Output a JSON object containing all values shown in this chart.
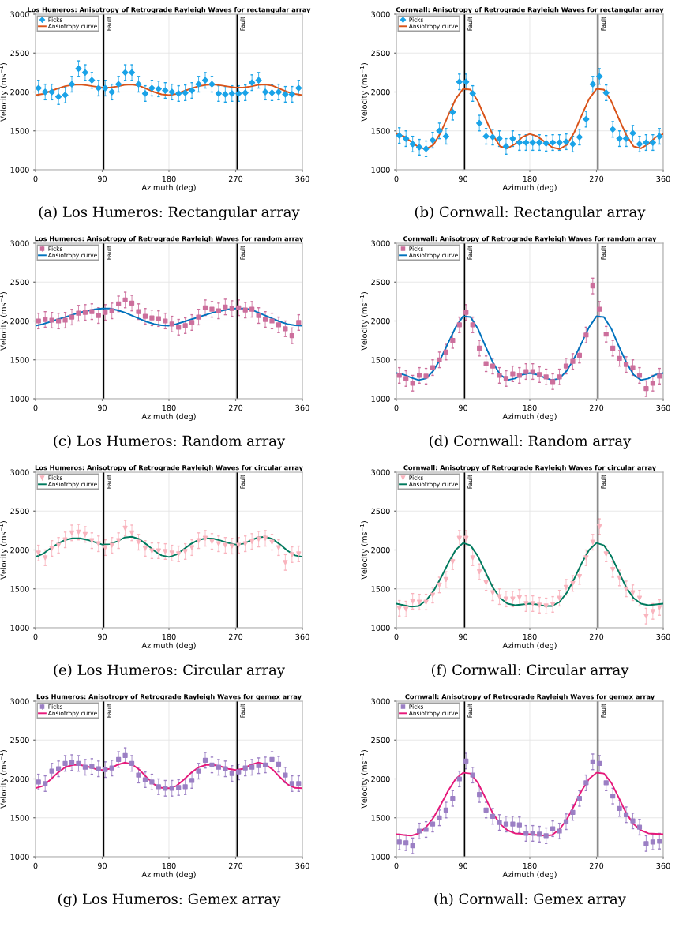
{
  "chart_data": [
    {
      "type": "scatter",
      "title": "Los Humeros: Anisotropy of Retrograde Rayleigh Waves for rectangular array",
      "xlabel": "Azimuth (deg)",
      "ylabel": "Velocity (ms$^{−1}$)",
      "xlim": [
        0,
        360
      ],
      "ylim": [
        1000,
        3000
      ],
      "xticks": [
        0,
        90,
        180,
        270,
        360
      ],
      "yticks": [
        1000,
        1500,
        2000,
        2500,
        3000
      ],
      "grid": true,
      "legend": "top left",
      "x": [
        4,
        13,
        22,
        31,
        40,
        49,
        58,
        67,
        76,
        85,
        94,
        103,
        112,
        121,
        130,
        139,
        148,
        157,
        166,
        175,
        184,
        193,
        202,
        211,
        220,
        229,
        238,
        247,
        256,
        265,
        274,
        283,
        292,
        301,
        310,
        319,
        328,
        337,
        346,
        355
      ],
      "ref_lines": [
        {
          "axis": "x",
          "value": 92,
          "label": "Fault",
          "color": "#000000"
        },
        {
          "axis": "x",
          "value": 272,
          "label": "Fault",
          "color": "#000000"
        }
      ],
      "annotations": [
        "(a) Los Humeros: Rectangular array"
      ],
      "series": [
        {
          "name": "Picks",
          "marker": "diamond",
          "color": "#1aa3e8",
          "values": [
            2050,
            2000,
            2000,
            1940,
            1960,
            2100,
            2300,
            2250,
            2150,
            2050,
            2050,
            2000,
            2100,
            2250,
            2250,
            2100,
            1980,
            2050,
            2040,
            2020,
            2000,
            1980,
            1990,
            2020,
            2100,
            2150,
            2100,
            1980,
            1970,
            1980,
            1980,
            1990,
            2120,
            2150,
            2000,
            1990,
            2000,
            1970,
            1970,
            2050
          ],
          "errors": [
            100,
            100,
            100,
            100,
            100,
            100,
            100,
            100,
            100,
            100,
            100,
            100,
            100,
            100,
            100,
            100,
            100,
            100,
            100,
            100,
            100,
            100,
            100,
            100,
            100,
            100,
            100,
            100,
            100,
            100,
            100,
            100,
            100,
            100,
            100,
            100,
            100,
            100,
            100,
            100
          ]
        },
        {
          "name": "Ansiotropy curve",
          "type": "line",
          "line_style": "solid",
          "color": "#d95319",
          "x": [
            0,
            10,
            20,
            30,
            40,
            50,
            60,
            70,
            80,
            90,
            100,
            110,
            120,
            130,
            140,
            150,
            160,
            170,
            180,
            190,
            200,
            210,
            220,
            230,
            240,
            250,
            260,
            270,
            280,
            290,
            300,
            310,
            320,
            330,
            340,
            350,
            360
          ],
          "values": [
            1960,
            1975,
            2010,
            2045,
            2075,
            2090,
            2095,
            2085,
            2070,
            2055,
            2055,
            2070,
            2090,
            2095,
            2080,
            2040,
            2000,
            1970,
            1960,
            1975,
            2010,
            2045,
            2075,
            2090,
            2095,
            2085,
            2070,
            2055,
            2055,
            2070,
            2090,
            2095,
            2080,
            2040,
            2000,
            1975,
            1960
          ]
        }
      ]
    },
    {
      "type": "scatter",
      "title": "Cornwall: Anisotropy of Retrograde Rayleigh Waves for rectangular array",
      "xlabel": "Azimuth (deg)",
      "ylabel": "Velocity (ms$^{−1}$)",
      "xlim": [
        0,
        360
      ],
      "ylim": [
        1000,
        3000
      ],
      "xticks": [
        0,
        90,
        180,
        270,
        360
      ],
      "yticks": [
        1000,
        1500,
        2000,
        2500,
        3000
      ],
      "grid": true,
      "legend": "top left",
      "x": [
        4,
        13,
        22,
        31,
        40,
        49,
        58,
        67,
        76,
        85,
        94,
        103,
        112,
        121,
        130,
        139,
        148,
        157,
        166,
        175,
        184,
        193,
        202,
        211,
        220,
        229,
        238,
        247,
        256,
        265,
        274,
        283,
        292,
        301,
        310,
        319,
        328,
        337,
        346,
        355
      ],
      "ref_lines": [
        {
          "axis": "x",
          "value": 92,
          "label": "Fault",
          "color": "#000000"
        },
        {
          "axis": "x",
          "value": 272,
          "label": "Fault",
          "color": "#000000"
        }
      ],
      "annotations": [
        "(b) Cornwall: Rectangular array"
      ],
      "series": [
        {
          "name": "Picks",
          "marker": "diamond",
          "color": "#1aa3e8",
          "values": [
            1440,
            1400,
            1330,
            1290,
            1270,
            1380,
            1500,
            1430,
            1740,
            2130,
            2130,
            1980,
            1600,
            1430,
            1420,
            1400,
            1300,
            1400,
            1350,
            1350,
            1350,
            1350,
            1340,
            1350,
            1350,
            1360,
            1330,
            1420,
            1650,
            2100,
            2200,
            1990,
            1520,
            1400,
            1400,
            1470,
            1330,
            1350,
            1350,
            1430
          ],
          "errors": [
            100,
            100,
            100,
            100,
            100,
            100,
            100,
            100,
            100,
            100,
            100,
            100,
            100,
            100,
            100,
            100,
            100,
            100,
            100,
            100,
            100,
            100,
            100,
            100,
            100,
            100,
            100,
            100,
            100,
            100,
            100,
            100,
            100,
            100,
            100,
            100,
            100,
            100,
            100,
            100
          ]
        },
        {
          "name": "Ansiotropy curve",
          "type": "line",
          "line_style": "solid",
          "color": "#d95319",
          "x": [
            0,
            10,
            20,
            30,
            40,
            50,
            60,
            70,
            80,
            90,
            100,
            110,
            120,
            130,
            140,
            150,
            160,
            170,
            180,
            190,
            200,
            210,
            220,
            230,
            240,
            250,
            260,
            270,
            280,
            290,
            300,
            310,
            320,
            330,
            340,
            350,
            360
          ],
          "values": [
            1460,
            1430,
            1360,
            1290,
            1265,
            1320,
            1480,
            1700,
            1910,
            2040,
            2030,
            1880,
            1660,
            1450,
            1300,
            1275,
            1330,
            1420,
            1460,
            1430,
            1360,
            1290,
            1265,
            1320,
            1480,
            1700,
            1910,
            2040,
            2030,
            1880,
            1660,
            1450,
            1300,
            1275,
            1330,
            1420,
            1460
          ]
        }
      ]
    },
    {
      "type": "scatter",
      "title": "Los Humeros: Anisotropy of Retrograde Rayleigh Waves for random array",
      "xlabel": "Azimuth (deg)",
      "ylabel": "Velocity (ms$^{−1}$)",
      "xlim": [
        0,
        360
      ],
      "ylim": [
        1000,
        3000
      ],
      "xticks": [
        0,
        90,
        180,
        270,
        360
      ],
      "yticks": [
        1000,
        1500,
        2000,
        2500,
        3000
      ],
      "grid": true,
      "legend": "top left",
      "x": [
        4,
        13,
        22,
        31,
        40,
        49,
        58,
        67,
        76,
        85,
        94,
        103,
        112,
        121,
        130,
        139,
        148,
        157,
        166,
        175,
        184,
        193,
        202,
        211,
        220,
        229,
        238,
        247,
        256,
        265,
        274,
        283,
        292,
        301,
        310,
        319,
        328,
        337,
        346,
        355
      ],
      "ref_lines": [
        {
          "axis": "x",
          "value": 92,
          "label": "Fault",
          "color": "#000000"
        },
        {
          "axis": "x",
          "value": 272,
          "label": "Fault",
          "color": "#000000"
        }
      ],
      "annotations": [
        "(c) Los Humeros: Random array"
      ],
      "series": [
        {
          "name": "Picks",
          "marker": "square",
          "color": "#cc6f9c",
          "values": [
            2000,
            2020,
            2010,
            2000,
            2010,
            2050,
            2100,
            2110,
            2120,
            2070,
            2110,
            2130,
            2220,
            2270,
            2230,
            2120,
            2060,
            2040,
            2030,
            2000,
            1960,
            1920,
            1940,
            1980,
            2050,
            2170,
            2150,
            2130,
            2180,
            2160,
            2170,
            2140,
            2150,
            2070,
            2020,
            2000,
            1950,
            1900,
            1810,
            1980
          ],
          "errors": [
            100,
            100,
            100,
            100,
            100,
            100,
            100,
            100,
            100,
            100,
            100,
            100,
            100,
            100,
            100,
            100,
            100,
            100,
            100,
            100,
            100,
            100,
            100,
            100,
            100,
            100,
            100,
            100,
            100,
            100,
            100,
            100,
            100,
            100,
            100,
            100,
            100,
            100,
            100,
            100
          ]
        },
        {
          "name": "Ansiotropy curve",
          "type": "line",
          "line_style": "solid",
          "color": "#0072bd",
          "x": [
            0,
            10,
            20,
            30,
            40,
            50,
            60,
            70,
            80,
            90,
            100,
            110,
            120,
            130,
            140,
            150,
            160,
            170,
            180,
            190,
            200,
            210,
            220,
            230,
            240,
            250,
            260,
            270,
            280,
            290,
            300,
            310,
            320,
            330,
            340,
            350,
            360
          ],
          "values": [
            1940,
            1960,
            1990,
            2020,
            2050,
            2080,
            2110,
            2130,
            2150,
            2160,
            2160,
            2140,
            2110,
            2070,
            2030,
            1990,
            1960,
            1945,
            1940,
            1960,
            1990,
            2020,
            2050,
            2080,
            2110,
            2130,
            2150,
            2160,
            2160,
            2150,
            2110,
            2070,
            2030,
            1990,
            1960,
            1945,
            1940
          ]
        }
      ]
    },
    {
      "type": "scatter",
      "title": "Cornwall: Anisotropy of Retrograde Rayleigh Waves for random array",
      "xlabel": "Azimuth (deg)",
      "ylabel": "Velocity (ms$^{−1}$)",
      "xlim": [
        0,
        360
      ],
      "ylim": [
        1000,
        3000
      ],
      "xticks": [
        0,
        90,
        180,
        270,
        360
      ],
      "yticks": [
        1000,
        1500,
        2000,
        2500,
        3000
      ],
      "grid": true,
      "legend": "top left",
      "x": [
        4,
        13,
        22,
        31,
        40,
        49,
        58,
        67,
        76,
        85,
        94,
        103,
        112,
        121,
        130,
        139,
        148,
        157,
        166,
        175,
        184,
        193,
        202,
        211,
        220,
        229,
        238,
        247,
        256,
        265,
        274,
        283,
        292,
        301,
        310,
        319,
        328,
        337,
        346,
        355
      ],
      "ref_lines": [
        {
          "axis": "x",
          "value": 92,
          "label": "Fault",
          "color": "#000000"
        },
        {
          "axis": "x",
          "value": 272,
          "label": "Fault",
          "color": "#000000"
        }
      ],
      "annotations": [
        "(d) Cornwall: Random array"
      ],
      "series": [
        {
          "name": "Picks",
          "marker": "square",
          "color": "#cc6f9c",
          "values": [
            1300,
            1260,
            1200,
            1300,
            1290,
            1400,
            1500,
            1600,
            1750,
            1950,
            2110,
            1950,
            1650,
            1450,
            1420,
            1300,
            1260,
            1320,
            1300,
            1350,
            1350,
            1310,
            1280,
            1220,
            1280,
            1420,
            1480,
            1560,
            1820,
            2450,
            2150,
            1830,
            1650,
            1520,
            1440,
            1400,
            1300,
            1130,
            1200,
            1290
          ],
          "errors": [
            100,
            100,
            100,
            100,
            100,
            100,
            100,
            100,
            100,
            100,
            100,
            100,
            100,
            100,
            100,
            100,
            100,
            100,
            100,
            100,
            100,
            100,
            100,
            100,
            100,
            100,
            100,
            100,
            100,
            100,
            100,
            100,
            100,
            100,
            100,
            100,
            100,
            100,
            100,
            100
          ]
        },
        {
          "name": "Ansiotropy curve",
          "type": "line",
          "line_style": "solid",
          "color": "#0072bd",
          "x": [
            0,
            10,
            20,
            30,
            40,
            50,
            60,
            70,
            80,
            90,
            100,
            110,
            120,
            130,
            140,
            150,
            160,
            170,
            180,
            190,
            200,
            210,
            220,
            230,
            240,
            250,
            260,
            270,
            280,
            290,
            300,
            310,
            320,
            330,
            340,
            350,
            360
          ],
          "values": [
            1330,
            1310,
            1270,
            1240,
            1260,
            1360,
            1520,
            1720,
            1920,
            2060,
            2050,
            1900,
            1680,
            1470,
            1310,
            1240,
            1260,
            1310,
            1330,
            1310,
            1270,
            1240,
            1260,
            1360,
            1520,
            1720,
            1920,
            2060,
            2050,
            1900,
            1680,
            1470,
            1310,
            1240,
            1260,
            1310,
            1330
          ]
        }
      ]
    },
    {
      "type": "scatter",
      "title": "Los Humeros: Anisotropy of Retrograde Rayleigh Waves for circular array",
      "xlabel": "Azimuth (deg)",
      "ylabel": "Velocity (ms$^{−1}$)",
      "xlim": [
        0,
        360
      ],
      "ylim": [
        1000,
        3000
      ],
      "xticks": [
        0,
        90,
        180,
        270,
        360
      ],
      "yticks": [
        1000,
        1500,
        2000,
        2500,
        3000
      ],
      "grid": true,
      "legend": "top left",
      "x": [
        4,
        13,
        22,
        31,
        40,
        49,
        58,
        67,
        76,
        85,
        94,
        103,
        112,
        121,
        130,
        139,
        148,
        157,
        166,
        175,
        184,
        193,
        202,
        211,
        220,
        229,
        238,
        247,
        256,
        265,
        274,
        283,
        292,
        301,
        310,
        319,
        328,
        337,
        346,
        355
      ],
      "ref_lines": [
        {
          "axis": "x",
          "value": 92,
          "label": "Fault",
          "color": "#000000"
        },
        {
          "axis": "x",
          "value": 272,
          "label": "Fault",
          "color": "#000000"
        }
      ],
      "annotations": [
        "(e) Los Humeros: Circular array"
      ],
      "series": [
        {
          "name": "Picks",
          "marker": "triangle",
          "color": "#f9b4be",
          "values": [
            1960,
            1900,
            2020,
            2060,
            2130,
            2220,
            2230,
            2200,
            2120,
            2080,
            2030,
            2060,
            2120,
            2280,
            2220,
            2100,
            2020,
            1990,
            1990,
            1980,
            1960,
            1950,
            1980,
            2030,
            2120,
            2150,
            2110,
            2080,
            2060,
            2050,
            2060,
            2080,
            2110,
            2140,
            2150,
            2100,
            2030,
            1840,
            1940,
            1950
          ],
          "errors": [
            100,
            100,
            100,
            100,
            100,
            100,
            100,
            100,
            100,
            100,
            100,
            100,
            100,
            100,
            100,
            100,
            100,
            100,
            100,
            100,
            100,
            100,
            100,
            100,
            100,
            100,
            100,
            100,
            100,
            100,
            100,
            100,
            100,
            100,
            100,
            100,
            100,
            100,
            100,
            100
          ]
        },
        {
          "name": "Ansiotropy curve",
          "type": "line",
          "line_style": "solid",
          "color": "#007a5e",
          "x": [
            0,
            10,
            20,
            30,
            40,
            50,
            60,
            70,
            80,
            90,
            100,
            110,
            120,
            130,
            140,
            150,
            160,
            170,
            180,
            190,
            200,
            210,
            220,
            230,
            240,
            250,
            260,
            270,
            280,
            290,
            300,
            310,
            320,
            330,
            340,
            350,
            360
          ],
          "values": [
            1910,
            1950,
            2020,
            2080,
            2130,
            2150,
            2150,
            2130,
            2100,
            2070,
            2075,
            2110,
            2160,
            2170,
            2140,
            2070,
            1990,
            1930,
            1910,
            1940,
            2010,
            2080,
            2130,
            2150,
            2145,
            2120,
            2090,
            2070,
            2080,
            2120,
            2160,
            2170,
            2140,
            2070,
            1990,
            1930,
            1910
          ]
        }
      ]
    },
    {
      "type": "scatter",
      "title": "Cornwall: Anisotropy of Retrograde Rayleigh Waves for circular array",
      "xlabel": "Azimuth (deg)",
      "ylabel": "Velocity (ms$^{−1}$)",
      "xlim": [
        0,
        360
      ],
      "ylim": [
        1000,
        3000
      ],
      "xticks": [
        0,
        90,
        180,
        270,
        360
      ],
      "yticks": [
        1000,
        1500,
        2000,
        2500,
        3000
      ],
      "grid": true,
      "legend": "top left",
      "x": [
        4,
        13,
        22,
        31,
        40,
        49,
        58,
        67,
        76,
        85,
        94,
        103,
        112,
        121,
        130,
        139,
        148,
        157,
        166,
        175,
        184,
        193,
        202,
        211,
        220,
        229,
        238,
        247,
        256,
        265,
        274,
        283,
        292,
        301,
        310,
        319,
        328,
        337,
        346,
        355
      ],
      "ref_lines": [
        {
          "axis": "x",
          "value": 92,
          "label": "Fault",
          "color": "#000000"
        },
        {
          "axis": "x",
          "value": 272,
          "label": "Fault",
          "color": "#000000"
        }
      ],
      "annotations": [
        "(f) Cornwall: Circular array"
      ],
      "series": [
        {
          "name": "Picks",
          "marker": "triangle",
          "color": "#f9b4be",
          "values": [
            1250,
            1240,
            1340,
            1330,
            1330,
            1420,
            1550,
            1620,
            1850,
            2150,
            2150,
            1900,
            1720,
            1580,
            1450,
            1400,
            1370,
            1370,
            1390,
            1310,
            1310,
            1290,
            1280,
            1300,
            1380,
            1520,
            1570,
            1660,
            1900,
            2100,
            2300,
            1950,
            1750,
            1640,
            1500,
            1450,
            1380,
            1150,
            1210,
            1260
          ],
          "errors": [
            100,
            100,
            100,
            100,
            100,
            100,
            100,
            100,
            100,
            100,
            100,
            100,
            100,
            100,
            100,
            100,
            100,
            100,
            100,
            100,
            100,
            100,
            100,
            100,
            100,
            100,
            100,
            100,
            100,
            100,
            100,
            100,
            100,
            100,
            100,
            100,
            100,
            100,
            100,
            100
          ]
        },
        {
          "name": "Ansiotropy curve",
          "type": "line",
          "line_style": "solid",
          "color": "#007a5e",
          "x": [
            0,
            10,
            20,
            30,
            40,
            50,
            60,
            70,
            80,
            90,
            100,
            110,
            120,
            130,
            140,
            150,
            160,
            170,
            180,
            190,
            200,
            210,
            220,
            230,
            240,
            250,
            260,
            270,
            280,
            290,
            300,
            310,
            320,
            330,
            340,
            350,
            360
          ],
          "values": [
            1310,
            1290,
            1270,
            1280,
            1350,
            1470,
            1640,
            1830,
            2000,
            2090,
            2060,
            1920,
            1720,
            1520,
            1380,
            1310,
            1290,
            1300,
            1310,
            1300,
            1280,
            1280,
            1330,
            1450,
            1630,
            1830,
            2000,
            2090,
            2060,
            1920,
            1720,
            1520,
            1380,
            1310,
            1290,
            1300,
            1310
          ]
        }
      ]
    },
    {
      "type": "scatter",
      "title": "Los Humeros: Anisotropy of Retrograde Rayleigh Waves for gemex array",
      "xlabel": "Azimuth (deg)",
      "ylabel": "Velocity (ms$^{−1}$)",
      "xlim": [
        0,
        360
      ],
      "ylim": [
        1000,
        3000
      ],
      "xticks": [
        0,
        90,
        180,
        270,
        360
      ],
      "yticks": [
        1000,
        1500,
        2000,
        2500,
        3000
      ],
      "grid": true,
      "legend": "top left",
      "x": [
        4,
        13,
        22,
        31,
        40,
        49,
        58,
        67,
        76,
        85,
        94,
        103,
        112,
        121,
        130,
        139,
        148,
        157,
        166,
        175,
        184,
        193,
        202,
        211,
        220,
        229,
        238,
        247,
        256,
        265,
        274,
        283,
        292,
        301,
        310,
        319,
        328,
        337,
        346,
        355
      ],
      "ref_lines": [
        {
          "axis": "x",
          "value": 92,
          "label": "Fault",
          "color": "#000000"
        },
        {
          "axis": "x",
          "value": 272,
          "label": "Fault",
          "color": "#000000"
        }
      ],
      "annotations": [
        "(g) Los Humeros: Gemex array"
      ],
      "series": [
        {
          "name": "Picks",
          "marker": "square",
          "color": "#9b7fc4",
          "values": [
            1960,
            1940,
            2100,
            2130,
            2200,
            2210,
            2200,
            2150,
            2160,
            2130,
            2120,
            2140,
            2250,
            2300,
            2200,
            2050,
            1990,
            1960,
            1900,
            1880,
            1880,
            1890,
            1900,
            1980,
            2100,
            2240,
            2180,
            2150,
            2130,
            2070,
            2090,
            2140,
            2150,
            2170,
            2180,
            2250,
            2190,
            2050,
            1940,
            1940
          ],
          "errors": [
            100,
            100,
            100,
            100,
            100,
            100,
            100,
            100,
            100,
            100,
            100,
            100,
            100,
            100,
            100,
            100,
            100,
            100,
            100,
            100,
            100,
            100,
            100,
            100,
            100,
            100,
            100,
            100,
            100,
            100,
            100,
            100,
            100,
            100,
            100,
            100,
            100,
            100,
            100,
            100
          ]
        },
        {
          "name": "Ansiotropy curve",
          "type": "line",
          "line_style": "solid",
          "color": "#e6197a",
          "x": [
            0,
            10,
            20,
            30,
            40,
            50,
            60,
            70,
            80,
            90,
            100,
            110,
            120,
            130,
            140,
            150,
            160,
            170,
            180,
            190,
            200,
            210,
            220,
            230,
            240,
            250,
            260,
            270,
            280,
            290,
            300,
            310,
            320,
            330,
            340,
            350,
            360
          ],
          "values": [
            1880,
            1910,
            1990,
            2080,
            2150,
            2180,
            2180,
            2160,
            2130,
            2115,
            2130,
            2180,
            2210,
            2190,
            2120,
            2020,
            1930,
            1885,
            1880,
            1910,
            1990,
            2080,
            2150,
            2180,
            2180,
            2160,
            2130,
            2115,
            2130,
            2180,
            2210,
            2190,
            2120,
            2020,
            1930,
            1885,
            1880
          ]
        }
      ]
    },
    {
      "type": "scatter",
      "title": "Cornwall: Anisotropy of Retrograde Rayleigh Waves for gemex array",
      "xlabel": "Azimuth (deg)",
      "ylabel": "Velocity (ms$^{−1}$)",
      "xlim": [
        0,
        360
      ],
      "ylim": [
        1000,
        3000
      ],
      "xticks": [
        0,
        90,
        180,
        270,
        360
      ],
      "yticks": [
        1000,
        1500,
        2000,
        2500,
        3000
      ],
      "grid": true,
      "legend": "top left",
      "x": [
        4,
        13,
        22,
        31,
        40,
        49,
        58,
        67,
        76,
        85,
        94,
        103,
        112,
        121,
        130,
        139,
        148,
        157,
        166,
        175,
        184,
        193,
        202,
        211,
        220,
        229,
        238,
        247,
        256,
        265,
        274,
        283,
        292,
        301,
        310,
        319,
        328,
        337,
        346,
        355
      ],
      "ref_lines": [
        {
          "axis": "x",
          "value": 92,
          "label": "Fault",
          "color": "#000000"
        },
        {
          "axis": "x",
          "value": 272,
          "label": "Fault",
          "color": "#000000"
        }
      ],
      "annotations": [
        "(h) Cornwall: Gemex array"
      ],
      "series": [
        {
          "name": "Picks",
          "marker": "square",
          "color": "#9b7fc4",
          "values": [
            1190,
            1180,
            1140,
            1330,
            1350,
            1420,
            1500,
            1600,
            1750,
            2000,
            2230,
            2050,
            1800,
            1600,
            1520,
            1440,
            1420,
            1420,
            1410,
            1300,
            1300,
            1290,
            1270,
            1360,
            1330,
            1450,
            1570,
            1750,
            1950,
            2220,
            2200,
            1950,
            1780,
            1620,
            1540,
            1460,
            1380,
            1170,
            1190,
            1200
          ],
          "errors": [
            100,
            100,
            100,
            100,
            100,
            100,
            100,
            100,
            100,
            100,
            100,
            100,
            100,
            100,
            100,
            100,
            100,
            100,
            100,
            100,
            100,
            100,
            100,
            100,
            100,
            100,
            100,
            100,
            100,
            100,
            100,
            100,
            100,
            100,
            100,
            100,
            100,
            100,
            100,
            100
          ]
        },
        {
          "name": "Ansiotropy curve",
          "type": "line",
          "line_style": "solid",
          "color": "#e6197a",
          "x": [
            0,
            10,
            20,
            30,
            40,
            50,
            60,
            70,
            80,
            90,
            100,
            110,
            120,
            130,
            140,
            150,
            160,
            170,
            180,
            190,
            200,
            210,
            220,
            230,
            240,
            250,
            260,
            270,
            280,
            290,
            300,
            310,
            320,
            330,
            340,
            350,
            360
          ],
          "values": [
            1290,
            1280,
            1270,
            1300,
            1380,
            1500,
            1670,
            1850,
            2000,
            2080,
            2070,
            1950,
            1760,
            1560,
            1420,
            1340,
            1300,
            1295,
            1290,
            1280,
            1270,
            1280,
            1350,
            1480,
            1660,
            1850,
            2000,
            2080,
            2070,
            1950,
            1760,
            1560,
            1420,
            1340,
            1300,
            1295,
            1290
          ]
        }
      ]
    }
  ]
}
